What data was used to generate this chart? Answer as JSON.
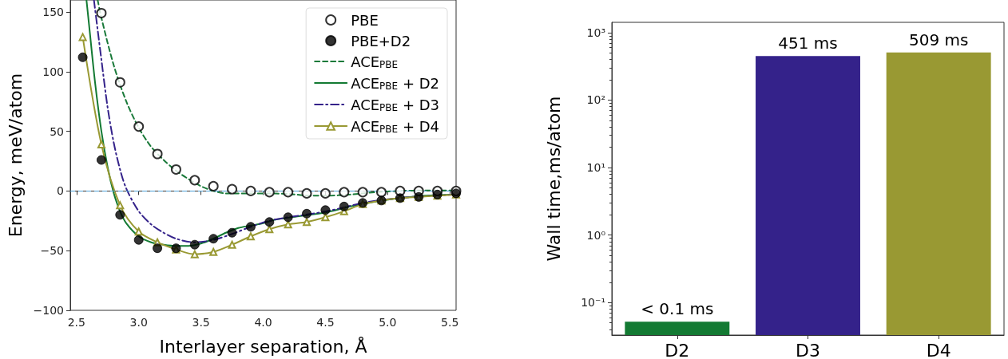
{
  "chart_data": [
    {
      "type": "line",
      "xlabel": "Interlayer separation, Å",
      "ylabel": "Energy, meV/atom",
      "xlim": [
        2.45,
        5.55
      ],
      "ylim": [
        -100,
        160
      ],
      "xticks": [
        2.5,
        {
          "value": 3,
          "label": "3.0"
        },
        3.5,
        {
          "value": 4,
          "label": "4.0"
        },
        4.5,
        {
          "value": 5,
          "label": "5.0"
        },
        5.5
      ],
      "yticks": [
        {
          "value": -100,
          "label": "−100"
        },
        {
          "value": -50,
          "label": "−50"
        },
        0,
        50,
        100,
        150
      ],
      "grid": false,
      "legend": "top right",
      "ref_lines": [
        {
          "axis": "y",
          "value": 0,
          "color": "#4c9fd8",
          "line_style": "dashed"
        }
      ],
      "series": [
        {
          "name": "PBE",
          "type": "scatter",
          "marker": "open circle",
          "color": "#000000",
          "x": [
            2.7,
            2.85,
            3.0,
            3.15,
            3.3,
            3.45,
            3.6,
            3.75,
            3.9,
            4.05,
            4.2,
            4.35,
            4.5,
            4.65,
            4.8,
            4.95,
            5.1,
            5.25,
            5.4,
            5.55
          ],
          "values": [
            149,
            91,
            54,
            31,
            18,
            9,
            4,
            1.5,
            0,
            -1,
            -1,
            -2,
            -2,
            -1,
            -1,
            -1,
            0,
            0,
            0,
            0
          ]
        },
        {
          "name": "PBE+D2",
          "type": "scatter",
          "marker": "circle",
          "color": "#000000",
          "x": [
            2.55,
            2.7,
            2.85,
            3.0,
            3.15,
            3.3,
            3.45,
            3.6,
            3.75,
            3.9,
            4.05,
            4.2,
            4.35,
            4.5,
            4.65,
            4.8,
            4.95,
            5.1,
            5.25,
            5.4,
            5.55
          ],
          "values": [
            112,
            26,
            -20,
            -41,
            -48,
            -48,
            -45,
            -40,
            -35,
            -30,
            -26,
            -22,
            -19,
            -16,
            -13,
            -10,
            -8,
            -6,
            -5,
            -3,
            -2
          ]
        },
        {
          "name": "ACE$_{PBE}$",
          "type": "line",
          "marker": "none",
          "line_style": "dashed",
          "color": "#1a7a3a",
          "x": [
            2.67,
            2.7,
            2.8,
            2.9,
            3.0,
            3.1,
            3.2,
            3.3,
            3.4,
            3.5,
            3.6,
            3.7,
            3.8,
            4.0,
            4.2,
            4.4,
            4.5,
            4.7,
            4.9,
            5.1,
            5.3,
            5.55
          ],
          "values": [
            160,
            145,
            105,
            75,
            53,
            37,
            26,
            17,
            10,
            4,
            0,
            -2,
            -2,
            -2,
            -2.5,
            -4,
            -4,
            -3,
            -1,
            0,
            0.5,
            0.5
          ]
        },
        {
          "name": "ACE$_{PBE}$ + D2",
          "type": "line",
          "marker": "none",
          "line_style": "solid",
          "color": "#137a33",
          "x": [
            2.58,
            2.6,
            2.65,
            2.7,
            2.75,
            2.8,
            2.85,
            2.9,
            3.0,
            3.1,
            3.2,
            3.3,
            3.4,
            3.5,
            3.6,
            3.7,
            3.8,
            3.9,
            4.0,
            4.1,
            4.3,
            4.5,
            4.7,
            4.9,
            5.1,
            5.3,
            5.55
          ],
          "values": [
            160,
            140,
            90,
            50,
            20,
            -2,
            -17,
            -27,
            -38,
            -43,
            -45,
            -46,
            -46,
            -44,
            -40,
            -35,
            -31,
            -29,
            -27,
            -24,
            -21,
            -18,
            -13,
            -9,
            -6,
            -4,
            -3
          ]
        },
        {
          "name": "ACE$_{PBE}$ + D3",
          "type": "line",
          "marker": "none",
          "line_style": "dashdot",
          "color": "#34228a",
          "x": [
            2.64,
            2.7,
            2.75,
            2.8,
            2.85,
            2.9,
            3.0,
            3.1,
            3.2,
            3.3,
            3.45,
            3.6,
            3.75,
            3.9,
            4.05,
            4.2,
            4.4,
            4.6,
            4.8,
            5.0,
            5.2,
            5.55
          ],
          "values": [
            160,
            110,
            70,
            40,
            18,
            2,
            -17,
            -28,
            -35,
            -40,
            -43,
            -41,
            -36,
            -30,
            -25,
            -22,
            -19,
            -15,
            -10,
            -7,
            -5,
            -3
          ]
        },
        {
          "name": "ACE$_{PBE}$ + D4",
          "type": "line",
          "marker": "triangle",
          "line_style": "solid",
          "color": "#999933",
          "x": [
            2.55,
            2.7,
            2.85,
            3.0,
            3.15,
            3.3,
            3.45,
            3.6,
            3.75,
            3.9,
            4.05,
            4.2,
            4.35,
            4.5,
            4.65,
            4.8,
            4.95,
            5.1,
            5.25,
            5.4,
            5.55
          ],
          "values": [
            129,
            39,
            -12,
            -34,
            -43,
            -49,
            -53,
            -51,
            -45,
            -38,
            -32,
            -28,
            -26,
            -22,
            -17,
            -11,
            -8,
            -6,
            -5,
            -4,
            -3
          ]
        }
      ]
    },
    {
      "type": "bar",
      "ylabel": "Wall time,ms/atom",
      "log": "y",
      "categories": [
        "D2",
        "D3",
        "D4"
      ],
      "values": [
        0.052,
        451,
        509
      ],
      "colors": [
        "#137a33",
        "#34228a",
        "#999933"
      ],
      "value_labels": [
        "< 0.1 ms",
        "451 ms",
        "509 ms"
      ],
      "ylim": [
        0.033,
        1420
      ],
      "yticks": [
        {
          "value": 0.1,
          "label": "10⁻¹"
        },
        {
          "value": 1,
          "label": "10⁰"
        },
        {
          "value": 10,
          "label": "10¹"
        },
        {
          "value": 100,
          "label": "10²"
        },
        {
          "value": 1000,
          "label": "10³"
        }
      ],
      "grid": false,
      "legend": false
    }
  ]
}
